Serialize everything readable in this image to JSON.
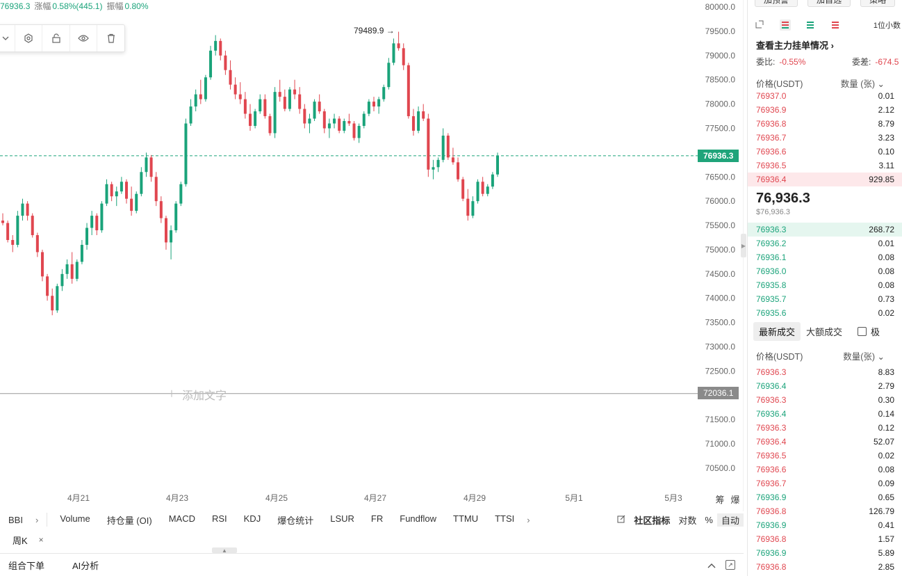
{
  "header": {
    "last_price": "76936.3",
    "change_label": "涨幅",
    "change_value": "0.58%(445.1)",
    "amplitude_label": "振幅",
    "amplitude_value": "0.80%"
  },
  "chart_data": {
    "type": "candlestick",
    "x_ticks": [
      "4月21",
      "4月23",
      "4月25",
      "4月27",
      "4月29",
      "5月1",
      "5月3"
    ],
    "y_ticks": [
      "80000.0",
      "79500.0",
      "79000.0",
      "78500.0",
      "78000.0",
      "77500.0",
      "77000.0",
      "76500.0",
      "76000.0",
      "75500.0",
      "75000.0",
      "74500.0",
      "74000.0",
      "73500.0",
      "73000.0",
      "72500.0",
      "72000.0",
      "71500.0",
      "71000.0",
      "70500.0"
    ],
    "ylim": [
      70500,
      80000
    ],
    "peak_label": "79489.9",
    "current_price": "76936.3",
    "horizontal_line_price": "72036.1",
    "add_text_label": "添加文字",
    "bar_interval": "1h",
    "bars": [
      [
        75600,
        75750,
        75500,
        75550
      ],
      [
        75550,
        75600,
        75150,
        75200
      ],
      [
        75200,
        75300,
        74950,
        75100
      ],
      [
        75100,
        75800,
        75050,
        75700
      ],
      [
        75700,
        76050,
        75600,
        75950
      ],
      [
        75950,
        76000,
        75600,
        75700
      ],
      [
        75700,
        75750,
        75250,
        75300
      ],
      [
        75300,
        75350,
        74850,
        74950
      ],
      [
        74950,
        75000,
        74350,
        74450
      ],
      [
        74450,
        74500,
        73950,
        74050
      ],
      [
        74050,
        74200,
        73650,
        73750
      ],
      [
        73750,
        74300,
        73700,
        74250
      ],
      [
        74250,
        74600,
        74150,
        74500
      ],
      [
        74500,
        74800,
        74400,
        74700
      ],
      [
        74700,
        74950,
        74300,
        74400
      ],
      [
        74400,
        74800,
        74350,
        74750
      ],
      [
        74750,
        75200,
        74700,
        75100
      ],
      [
        75100,
        75550,
        75000,
        75450
      ],
      [
        75450,
        75800,
        75300,
        75700
      ],
      [
        75700,
        75750,
        75300,
        75400
      ],
      [
        75400,
        76000,
        75350,
        75950
      ],
      [
        75950,
        76450,
        75900,
        76350
      ],
      [
        76350,
        76400,
        76000,
        76100
      ],
      [
        76100,
        76300,
        75900,
        76200
      ],
      [
        76200,
        76500,
        76150,
        76400
      ],
      [
        76400,
        76450,
        75950,
        76050
      ],
      [
        76050,
        76300,
        75700,
        75800
      ],
      [
        75800,
        76200,
        75750,
        76150
      ],
      [
        76150,
        76700,
        76100,
        76600
      ],
      [
        76600,
        77000,
        76500,
        76900
      ],
      [
        76900,
        76950,
        76400,
        76500
      ],
      [
        76500,
        76600,
        75900,
        76000
      ],
      [
        76000,
        76100,
        75550,
        75650
      ],
      [
        75650,
        75700,
        75000,
        75150
      ],
      [
        75150,
        75500,
        74800,
        75400
      ],
      [
        75400,
        76000,
        75350,
        75950
      ],
      [
        75950,
        76400,
        75900,
        76350
      ],
      [
        76350,
        77700,
        76300,
        77600
      ],
      [
        77600,
        78100,
        77550,
        77950
      ],
      [
        77950,
        78300,
        77850,
        78200
      ],
      [
        78200,
        78500,
        78000,
        78100
      ],
      [
        78100,
        78600,
        78050,
        78550
      ],
      [
        78550,
        79200,
        78500,
        79100
      ],
      [
        79100,
        79420,
        79000,
        79300
      ],
      [
        79300,
        79350,
        78900,
        79000
      ],
      [
        79000,
        79100,
        78600,
        78700
      ],
      [
        78700,
        78900,
        78300,
        78400
      ],
      [
        78400,
        78550,
        78100,
        78200
      ],
      [
        78200,
        78450,
        78000,
        78100
      ],
      [
        78100,
        78250,
        77700,
        77800
      ],
      [
        77800,
        78000,
        77450,
        77550
      ],
      [
        77550,
        77900,
        77500,
        77850
      ],
      [
        77850,
        78200,
        77800,
        78100
      ],
      [
        78100,
        78200,
        77700,
        77750
      ],
      [
        77750,
        77800,
        77350,
        77400
      ],
      [
        77400,
        78350,
        77300,
        78250
      ],
      [
        78250,
        78500,
        78050,
        78150
      ],
      [
        78150,
        78300,
        77850,
        77900
      ],
      [
        77900,
        78350,
        77850,
        78300
      ],
      [
        78300,
        78500,
        78100,
        78200
      ],
      [
        78200,
        78350,
        77800,
        77900
      ],
      [
        77900,
        78000,
        77500,
        77600
      ],
      [
        77600,
        77800,
        77400,
        77700
      ],
      [
        77700,
        78100,
        77650,
        78050
      ],
      [
        78050,
        78200,
        77800,
        77850
      ],
      [
        77850,
        77900,
        77400,
        77500
      ],
      [
        77500,
        77700,
        77300,
        77600
      ],
      [
        77600,
        77800,
        77500,
        77700
      ],
      [
        77700,
        77750,
        77400,
        77450
      ],
      [
        77450,
        77700,
        77400,
        77650
      ],
      [
        77650,
        77800,
        77550,
        77600
      ],
      [
        77600,
        77650,
        77250,
        77300
      ],
      [
        77300,
        77600,
        77200,
        77550
      ],
      [
        77550,
        77850,
        77500,
        77800
      ],
      [
        77800,
        78100,
        77750,
        78050
      ],
      [
        78050,
        78150,
        77850,
        77950
      ],
      [
        77950,
        78150,
        77800,
        78100
      ],
      [
        78100,
        78400,
        78050,
        78350
      ],
      [
        78350,
        78950,
        78300,
        78850
      ],
      [
        78850,
        79350,
        78800,
        79250
      ],
      [
        79250,
        79490,
        79100,
        79150
      ],
      [
        79150,
        79250,
        78700,
        78800
      ],
      [
        78800,
        78850,
        77700,
        77750
      ],
      [
        77750,
        77900,
        77350,
        77450
      ],
      [
        77450,
        77950,
        77400,
        77850
      ],
      [
        77850,
        78000,
        77650,
        77700
      ],
      [
        77700,
        77800,
        76500,
        76650
      ],
      [
        76650,
        76850,
        76450,
        76700
      ],
      [
        76700,
        76900,
        76600,
        76850
      ],
      [
        76850,
        77500,
        76800,
        77350
      ],
      [
        77350,
        77400,
        76850,
        76900
      ],
      [
        76900,
        77100,
        76750,
        76800
      ],
      [
        76800,
        76900,
        76400,
        76450
      ],
      [
        76450,
        76500,
        76000,
        76050
      ],
      [
        76050,
        76250,
        75600,
        75700
      ],
      [
        75700,
        76100,
        75650,
        76000
      ],
      [
        76000,
        76450,
        75950,
        76400
      ],
      [
        76400,
        76500,
        76100,
        76150
      ],
      [
        76150,
        76350,
        76100,
        76300
      ],
      [
        76300,
        76600,
        76250,
        76550
      ],
      [
        76550,
        77000,
        76500,
        76936.3
      ]
    ]
  },
  "drawing_toolbar": {
    "icons": [
      "chevron-down-icon",
      "gear-icon",
      "lock-icon",
      "eye-icon",
      "trash-icon"
    ]
  },
  "indicators": {
    "first": "BBI",
    "items": [
      "Volume",
      "持仓量 (OI)",
      "MACD",
      "RSI",
      "KDJ",
      "爆仓统计",
      "LSUR",
      "FR",
      "Fundflow",
      "TTMU",
      "TTSI"
    ],
    "community": "社区指标",
    "log": "对数",
    "percent": "%",
    "auto": "自动"
  },
  "period_tab": {
    "label": "周K",
    "close": "×"
  },
  "bottom_bar": {
    "tabs": [
      "组合下单",
      "AI分析"
    ]
  },
  "side_panel": {
    "top_buttons": [
      "加预警",
      "加自选",
      "策略"
    ],
    "precision": "1位小数",
    "main_orders_link": "查看主力挂单情况",
    "ratio_label": "委比:",
    "ratio_value": "-0.55%",
    "diff_label": "委差:",
    "diff_value": "-674.5",
    "orderbook_header": {
      "price": "价格(USDT)",
      "qty": "数量 (张)"
    },
    "asks": [
      {
        "price": "76937.0",
        "qty": "0.01"
      },
      {
        "price": "76936.9",
        "qty": "2.12"
      },
      {
        "price": "76936.8",
        "qty": "8.79"
      },
      {
        "price": "76936.7",
        "qty": "3.23"
      },
      {
        "price": "76936.6",
        "qty": "0.10"
      },
      {
        "price": "76936.5",
        "qty": "3.11"
      },
      {
        "price": "76936.4",
        "qty": "929.85"
      }
    ],
    "mid_price": "76,936.3",
    "mid_price_usd": "$76,936.3",
    "bids": [
      {
        "price": "76936.3",
        "qty": "268.72"
      },
      {
        "price": "76936.2",
        "qty": "0.01"
      },
      {
        "price": "76936.1",
        "qty": "0.08"
      },
      {
        "price": "76936.0",
        "qty": "0.08"
      },
      {
        "price": "76935.8",
        "qty": "0.08"
      },
      {
        "price": "76935.7",
        "qty": "0.73"
      },
      {
        "price": "76935.6",
        "qty": "0.02"
      }
    ],
    "trade_tabs": [
      "最新成交",
      "大额成交"
    ],
    "trade_checkbox_label": "极",
    "trades_header": {
      "price": "价格(USDT)",
      "qty": "数量(张)"
    },
    "trades": [
      {
        "price": "76936.3",
        "qty": "8.83",
        "side": "sell"
      },
      {
        "price": "76936.4",
        "qty": "2.79",
        "side": "buy"
      },
      {
        "price": "76936.3",
        "qty": "0.30",
        "side": "sell"
      },
      {
        "price": "76936.4",
        "qty": "0.14",
        "side": "buy"
      },
      {
        "price": "76936.3",
        "qty": "0.12",
        "side": "sell"
      },
      {
        "price": "76936.4",
        "qty": "52.07",
        "side": "sell"
      },
      {
        "price": "76936.5",
        "qty": "0.02",
        "side": "sell"
      },
      {
        "price": "76936.6",
        "qty": "0.08",
        "side": "sell"
      },
      {
        "price": "76936.7",
        "qty": "0.09",
        "side": "sell"
      },
      {
        "price": "76936.9",
        "qty": "0.65",
        "side": "buy"
      },
      {
        "price": "76936.8",
        "qty": "126.79",
        "side": "sell"
      },
      {
        "price": "76936.9",
        "qty": "0.41",
        "side": "buy"
      },
      {
        "price": "76936.8",
        "qty": "1.57",
        "side": "sell"
      },
      {
        "price": "76936.9",
        "qty": "5.89",
        "side": "buy"
      },
      {
        "price": "76936.8",
        "qty": "2.85",
        "side": "sell"
      }
    ]
  },
  "colors": {
    "up": "#1aa37a",
    "down": "#e0464f",
    "grid_text": "#666666"
  }
}
